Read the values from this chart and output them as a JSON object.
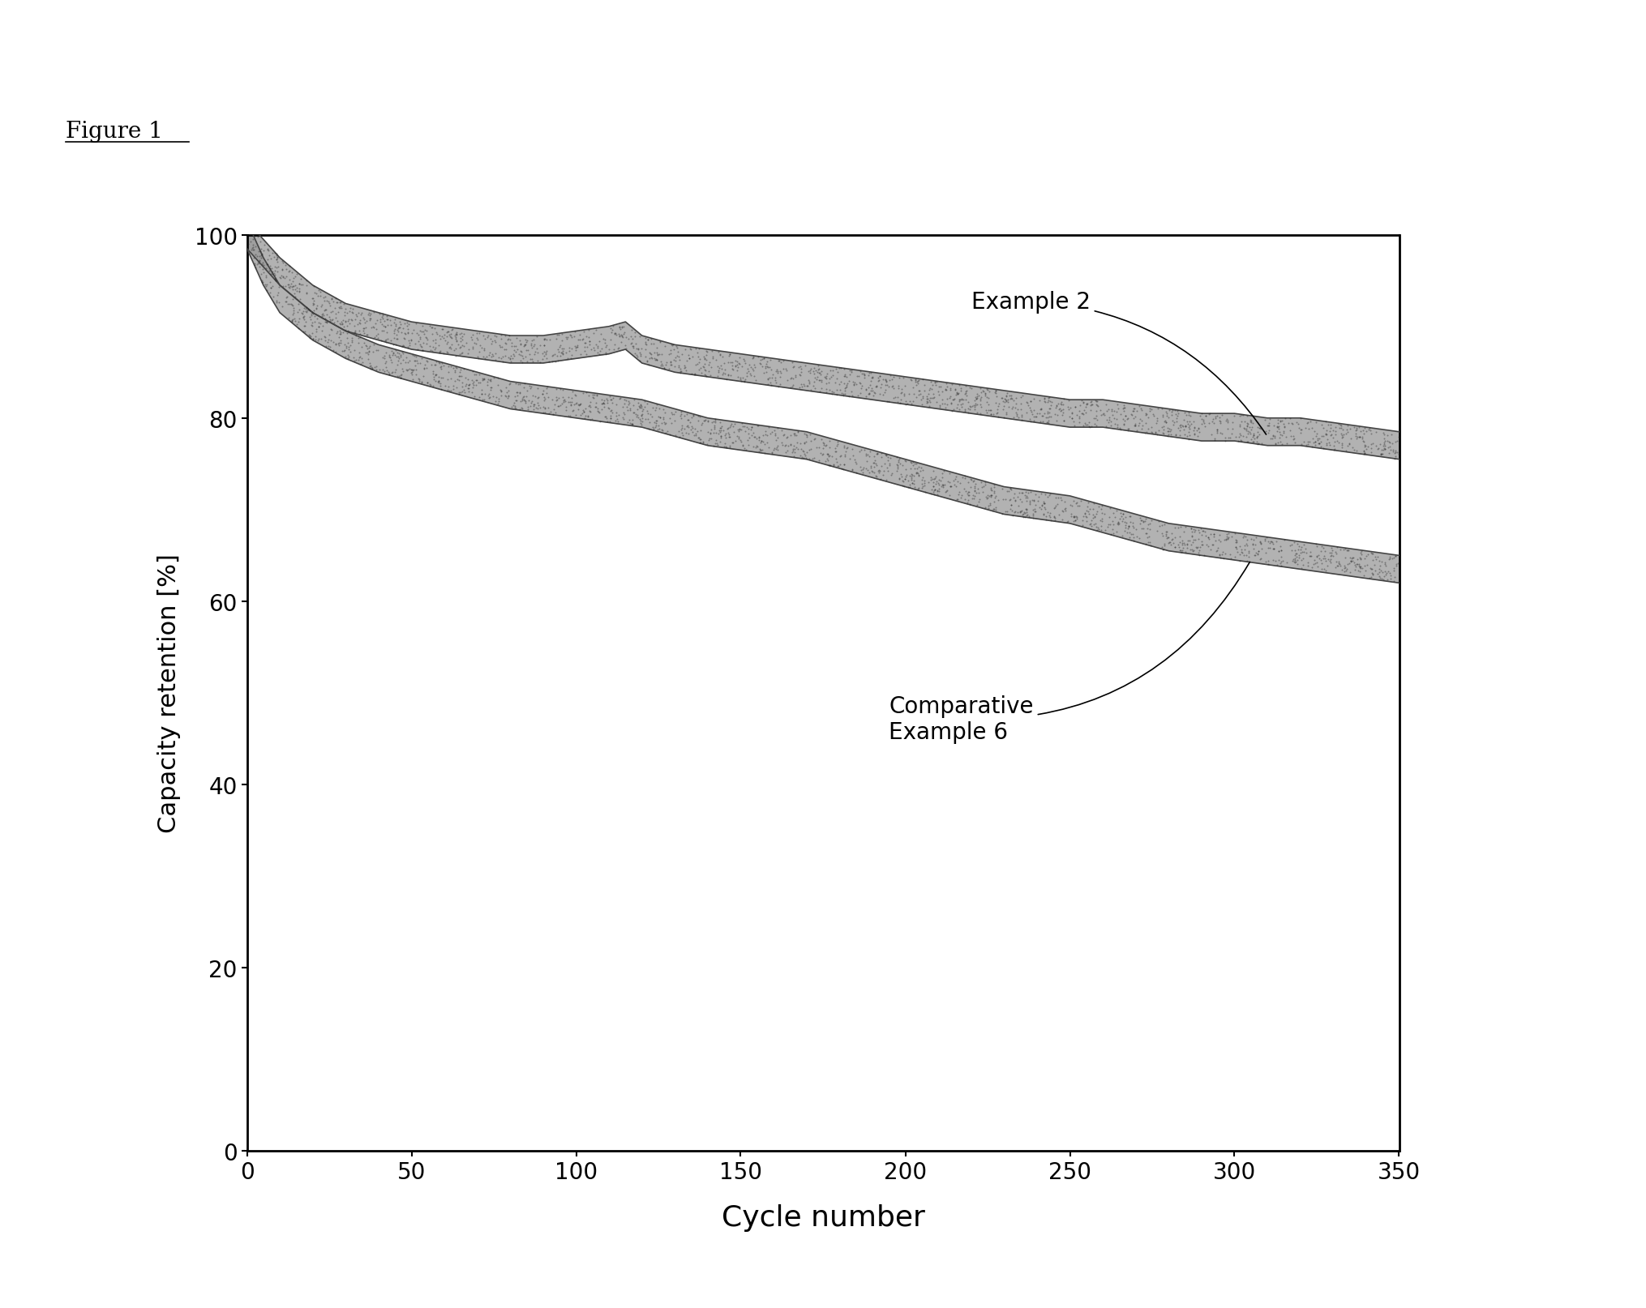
{
  "title": "Figure 1",
  "xlabel": "Cycle number",
  "ylabel": "Capacity retention [%]",
  "xlim": [
    0,
    350
  ],
  "ylim": [
    0,
    100
  ],
  "xticks": [
    0,
    50,
    100,
    150,
    200,
    250,
    300,
    350
  ],
  "yticks": [
    0,
    20,
    40,
    60,
    80,
    100
  ],
  "example2_x": [
    0,
    5,
    10,
    20,
    30,
    40,
    50,
    60,
    70,
    80,
    90,
    100,
    110,
    115,
    120,
    130,
    140,
    150,
    160,
    170,
    180,
    190,
    200,
    210,
    220,
    230,
    240,
    250,
    260,
    270,
    280,
    290,
    300,
    310,
    320,
    330,
    340,
    350
  ],
  "example2_y": [
    100,
    98,
    96,
    93,
    91,
    90,
    89,
    88.5,
    88,
    87.5,
    87.5,
    88,
    88.5,
    89,
    87.5,
    86.5,
    86,
    85.5,
    85,
    84.5,
    84,
    83.5,
    83,
    82.5,
    82,
    81.5,
    81,
    80.5,
    80.5,
    80,
    79.5,
    79,
    79,
    78.5,
    78.5,
    78,
    77.5,
    77
  ],
  "comp6_x": [
    0,
    5,
    10,
    20,
    30,
    40,
    50,
    60,
    70,
    80,
    90,
    100,
    110,
    120,
    130,
    140,
    150,
    160,
    170,
    180,
    190,
    200,
    210,
    220,
    230,
    240,
    250,
    260,
    270,
    280,
    290,
    300,
    310,
    320,
    330,
    340,
    350
  ],
  "comp6_y": [
    100,
    96,
    93,
    90,
    88,
    86.5,
    85.5,
    84.5,
    83.5,
    82.5,
    82,
    81.5,
    81,
    80.5,
    79.5,
    78.5,
    78,
    77.5,
    77,
    76,
    75,
    74,
    73,
    72,
    71,
    70.5,
    70,
    69,
    68,
    67,
    66.5,
    66,
    65.5,
    65,
    64.5,
    64,
    63.5
  ],
  "line_color": "#444444",
  "fill_color": "#999999",
  "background_color": "#ffffff",
  "annotation_example2": "Example 2",
  "annotation_comp6": "Comparative\nExample 6",
  "figure_label": "Figure 1"
}
